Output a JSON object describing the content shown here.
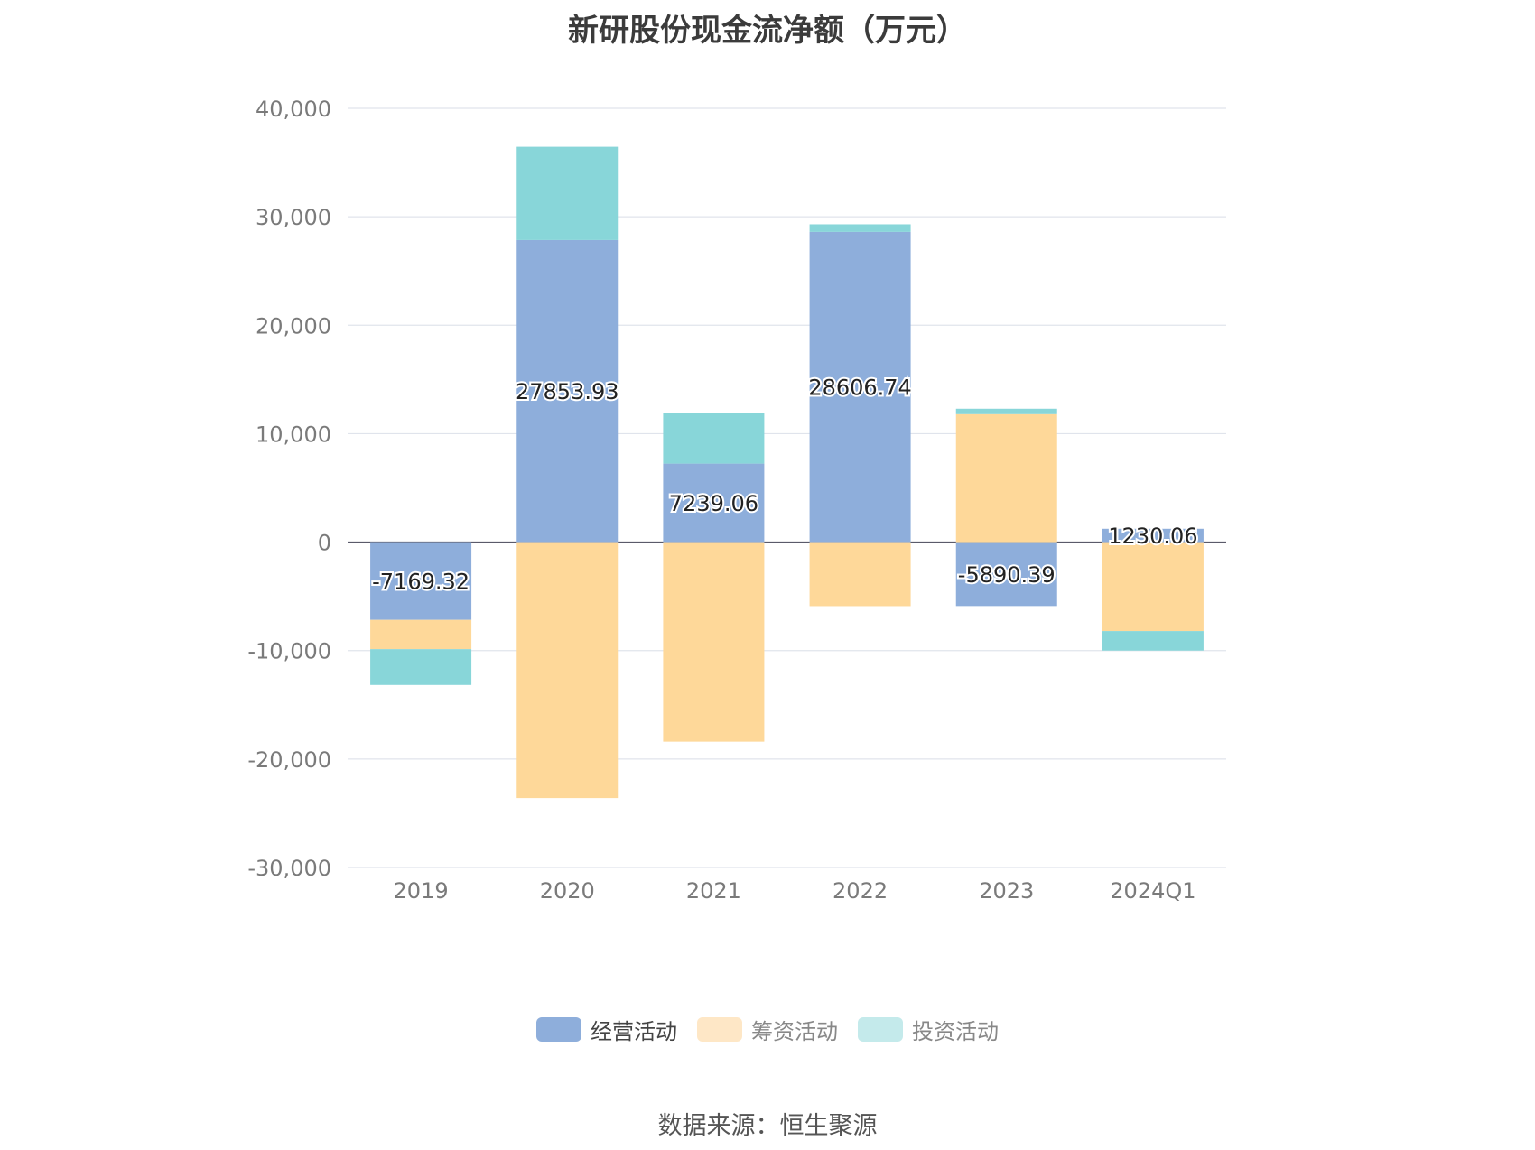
{
  "chart_data": {
    "type": "bar",
    "stacked": true,
    "title": "新研股份现金流净额（万元）",
    "categories": [
      "2019",
      "2020",
      "2021",
      "2022",
      "2023",
      "2024Q1"
    ],
    "series": [
      {
        "name": "经营活动",
        "color": "#8eaedb",
        "values": [
          -7169.32,
          27853.93,
          7239.06,
          28606.74,
          -5890.39,
          1230.06
        ]
      },
      {
        "name": "筹资活动",
        "color": "#fed899",
        "values": [
          -2700,
          -23600,
          -18400,
          -5900,
          11800,
          -8200
        ]
      },
      {
        "name": "投资活动",
        "color": "#88d6d9",
        "values": [
          -3300,
          8600,
          4700,
          700,
          500,
          -1800
        ]
      }
    ],
    "data_labels": [
      "-7169.32",
      "27853.93",
      "7239.06",
      "28606.74",
      "-5890.39",
      "1230.06"
    ],
    "ylim": [
      -30000,
      40000
    ],
    "yticks": [
      40000,
      30000,
      20000,
      10000,
      0,
      -10000,
      -20000,
      -30000
    ],
    "ytick_labels": [
      "40,000",
      "30,000",
      "20,000",
      "10,000",
      "0",
      "-10,000",
      "-20,000",
      "-30,000"
    ],
    "grid": true,
    "legend_position": "bottom"
  },
  "legend": {
    "items": [
      {
        "label": "经营活动",
        "color": "#8eaedb"
      },
      {
        "label": "筹资活动",
        "color": "#fee7c6"
      },
      {
        "label": "投资活动",
        "color": "#c4eaeb"
      }
    ]
  },
  "source": "数据来源：恒生聚源"
}
